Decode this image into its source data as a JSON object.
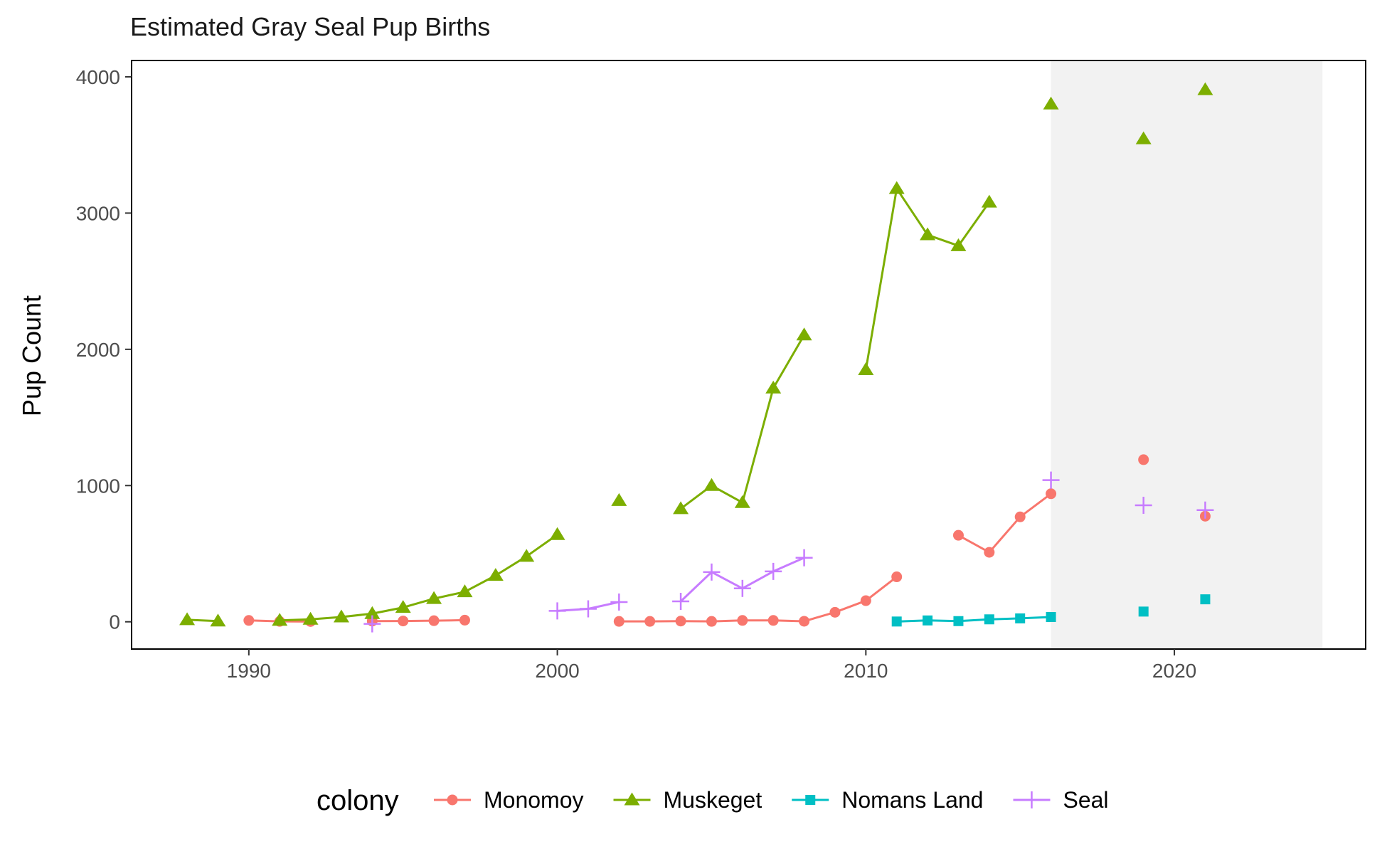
{
  "chart_data": {
    "type": "line",
    "title": "Estimated Gray Seal Pup Births",
    "ylabel": "Pup Count",
    "xlabel": "",
    "xlim": [
      1986.2,
      2026.2
    ],
    "ylim": [
      -200,
      4120
    ],
    "x_ticks": [
      1990,
      2000,
      2010,
      2020
    ],
    "x_tick_labels": [
      "1990",
      "2000",
      "2010",
      "2020"
    ],
    "y_ticks": [
      0,
      1000,
      2000,
      3000,
      4000
    ],
    "y_tick_labels": [
      "0",
      "1000",
      "2000",
      "3000",
      "4000"
    ],
    "shaded_region": {
      "x_start": 2016,
      "x_end": 2024.8,
      "color": "#f2f2f2"
    },
    "grid": false,
    "legend": {
      "title": "colony",
      "position": "bottom"
    },
    "series": [
      {
        "name": "Monomoy",
        "color": "#F8766D",
        "marker": "circle",
        "points": [
          [
            1990,
            10
          ],
          [
            1991,
            3
          ],
          [
            1992,
            2
          ],
          [
            1994,
            5
          ],
          [
            1995,
            6
          ],
          [
            1996,
            8
          ],
          [
            1997,
            12
          ],
          [
            2002,
            3
          ],
          [
            2003,
            3
          ],
          [
            2004,
            5
          ],
          [
            2005,
            3
          ],
          [
            2006,
            10
          ],
          [
            2007,
            10
          ],
          [
            2008,
            4
          ],
          [
            2009,
            70
          ],
          [
            2010,
            155
          ],
          [
            2011,
            330
          ],
          [
            2013,
            635
          ],
          [
            2014,
            510
          ],
          [
            2015,
            770
          ],
          [
            2016,
            940
          ],
          [
            2019,
            1190
          ],
          [
            2021,
            775
          ]
        ]
      },
      {
        "name": "Muskeget",
        "color": "#7CAE00",
        "marker": "triangle",
        "points": [
          [
            1988,
            15
          ],
          [
            1989,
            5
          ],
          [
            1991,
            10
          ],
          [
            1992,
            18
          ],
          [
            1993,
            35
          ],
          [
            1994,
            60
          ],
          [
            1995,
            105
          ],
          [
            1996,
            170
          ],
          [
            1997,
            220
          ],
          [
            1998,
            340
          ],
          [
            1999,
            480
          ],
          [
            2000,
            640
          ],
          [
            2002,
            890
          ],
          [
            2004,
            830
          ],
          [
            2005,
            1000
          ],
          [
            2006,
            875
          ],
          [
            2007,
            1715
          ],
          [
            2008,
            2105
          ],
          [
            2010,
            1850
          ],
          [
            2011,
            3180
          ],
          [
            2012,
            2840
          ],
          [
            2013,
            2760
          ],
          [
            2014,
            3080
          ],
          [
            2016,
            3800
          ],
          [
            2019,
            3545
          ],
          [
            2021,
            3905
          ]
        ]
      },
      {
        "name": "Nomans Land",
        "color": "#00BFC4",
        "marker": "square",
        "points": [
          [
            2011,
            2
          ],
          [
            2012,
            10
          ],
          [
            2013,
            5
          ],
          [
            2014,
            18
          ],
          [
            2015,
            25
          ],
          [
            2016,
            35
          ],
          [
            2019,
            75
          ],
          [
            2021,
            165
          ]
        ]
      },
      {
        "name": "Seal",
        "color": "#C77CFF",
        "marker": "plus",
        "points": [
          [
            1994,
            -15
          ],
          [
            2000,
            80
          ],
          [
            2001,
            95
          ],
          [
            2002,
            145
          ],
          [
            2004,
            150
          ],
          [
            2005,
            365
          ],
          [
            2006,
            245
          ],
          [
            2007,
            370
          ],
          [
            2008,
            470
          ],
          [
            2016,
            1040
          ],
          [
            2019,
            855
          ],
          [
            2021,
            820
          ]
        ]
      }
    ]
  }
}
